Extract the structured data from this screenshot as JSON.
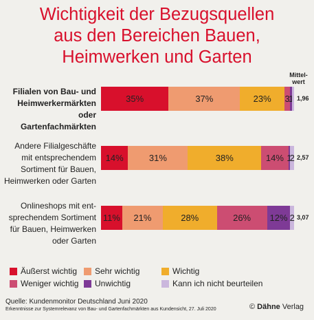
{
  "title_lines": [
    "Wichtigkeit der Bezugsquellen",
    "aus den Bereichen Bauen,",
    "Heimwerken und Garten"
  ],
  "mittelwert_label": [
    "Mittel-",
    "wert"
  ],
  "chart_data": {
    "type": "bar",
    "orientation": "horizontal-stacked",
    "categories": [
      "Filialen von Bau- und Heimwerkermärkten oder Gartenfachmärkten",
      "Andere Filialgeschäfte mit entsprechendem Sortiment für Bauen, Heimwerken oder Garten",
      "Onlineshops mit entsprechendem Sortiment für Bauen, Heimwerken oder Garten"
    ],
    "category_lines": [
      [
        "Filialen von Bau- und",
        "Heimwerkermärkten oder",
        "Gartenfachmärkten"
      ],
      [
        "Andere Filialgeschäfte",
        "mit entsprechendem",
        "Sortiment für Bauen,",
        "Heimwerken oder Garten"
      ],
      [
        "Onlineshops mit ent-",
        "sprechendem Sortiment",
        "für Bauen, Heimwerken",
        "oder Garten"
      ]
    ],
    "series": [
      {
        "name": "Äußerst wichtig",
        "color": "#d8102c",
        "values": [
          35,
          14,
          11
        ],
        "labels": [
          "35%",
          "14%",
          "11%"
        ]
      },
      {
        "name": "Sehr wichtig",
        "color": "#ef9b70",
        "values": [
          37,
          31,
          21
        ],
        "labels": [
          "37%",
          "31%",
          "21%"
        ]
      },
      {
        "name": "Wichtig",
        "color": "#f0ad2c",
        "values": [
          23,
          38,
          28
        ],
        "labels": [
          "23%",
          "38%",
          "28%"
        ]
      },
      {
        "name": "Weniger wichtig",
        "color": "#cc4d72",
        "values": [
          3,
          14,
          26
        ],
        "labels": [
          "3",
          "14%",
          "26%"
        ]
      },
      {
        "name": "Unwichtig",
        "color": "#7e3a96",
        "values": [
          1,
          1,
          12
        ],
        "labels": [
          "1",
          "1",
          "12%"
        ]
      },
      {
        "name": "Kann ich nicht beurteilen",
        "color": "#cbb7dd",
        "values": [
          1,
          2,
          2
        ],
        "labels": [
          "",
          "2",
          "2"
        ]
      }
    ],
    "mean_values": [
      "1,96",
      "2,57",
      "3,07"
    ]
  },
  "source": "Quelle: Kundenmonitor Deutschland Juni 2020",
  "note": "Erkenntnisse zur Systemrelevanz von Bau- und Gartenfachmärkten aus Kundensicht, 27. Juli 2020",
  "publisher": {
    "symbol": "©",
    "name": "Dähne",
    "suffix": " Verlag"
  }
}
